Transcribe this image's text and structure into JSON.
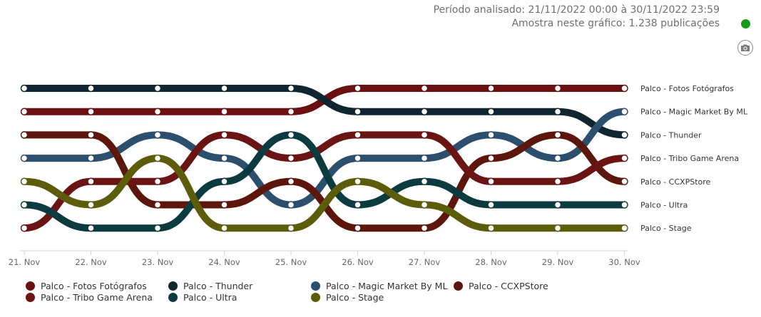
{
  "header": {
    "period_text": "Período analisado: 21/11/2022 00:00 à 30/11/2022 23:59",
    "sample_text": "Amostra neste gráfico: 1.238 publicações",
    "status_color": "#1a9a1a",
    "camera_icon": "camera-icon"
  },
  "chart_data": {
    "type": "line",
    "subtype": "bump",
    "title": "",
    "xlabel": "",
    "ylabel": "",
    "categories": [
      "21. Nov",
      "22. Nov",
      "23. Nov",
      "24. Nov",
      "25. Nov",
      "26. Nov",
      "27. Nov",
      "28. Nov",
      "29. Nov",
      "30. Nov"
    ],
    "rank_range": [
      1,
      7
    ],
    "grid": false,
    "legend_position": "bottom",
    "series": [
      {
        "name": "Palco - Fotos Fotógrafos",
        "color": "#6b1010",
        "ranks": [
          2,
          2,
          2,
          2,
          2,
          1,
          1,
          1,
          1,
          1
        ]
      },
      {
        "name": "Palco - Thunder",
        "color": "#0f2530",
        "ranks": [
          1,
          1,
          1,
          1,
          1,
          2,
          2,
          2,
          2,
          3
        ]
      },
      {
        "name": "Palco - Magic Market By ML",
        "color": "#2c4f6e",
        "ranks": [
          4,
          4,
          3,
          4,
          6,
          4,
          4,
          3,
          4,
          2
        ]
      },
      {
        "name": "Palco - CCXPStore",
        "color": "#5c160c",
        "ranks": [
          3,
          3,
          6,
          6,
          5,
          7,
          7,
          4,
          3,
          5
        ]
      },
      {
        "name": "Palco - Tribo Game Arena",
        "color": "#6a1414",
        "ranks": [
          7,
          5,
          5,
          3,
          4,
          3,
          3,
          5,
          5,
          4
        ]
      },
      {
        "name": "Palco - Ultra",
        "color": "#0c3b3f",
        "ranks": [
          6,
          7,
          7,
          5,
          3,
          6,
          5,
          6,
          6,
          6
        ]
      },
      {
        "name": "Palco - Stage",
        "color": "#5d5c0b",
        "ranks": [
          5,
          6,
          4,
          7,
          7,
          5,
          6,
          7,
          7,
          7
        ]
      }
    ],
    "right_labels": [
      "Palco - Fotos Fotógrafos",
      "Palco - Magic Market By ML",
      "Palco - Thunder",
      "Palco - Tribo Game Arena",
      "Palco - CCXPStore",
      "Palco - Ultra",
      "Palco - Stage"
    ],
    "legend_rows": [
      [
        "Palco - Fotos Fotógrafos",
        "Palco - Thunder",
        "Palco - Magic Market By ML",
        "Palco - CCXPStore"
      ],
      [
        "Palco - Tribo Game Arena",
        "Palco - Ultra",
        "Palco - Stage"
      ]
    ]
  }
}
